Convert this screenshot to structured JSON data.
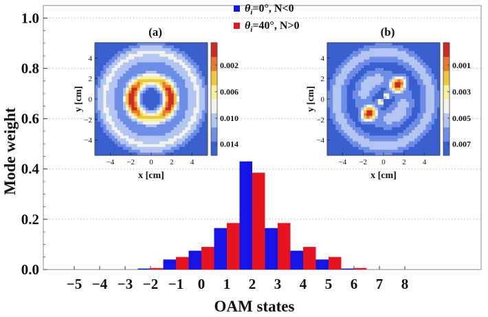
{
  "chart_data": {
    "type": "bar",
    "xlabel": "OAM states",
    "ylabel": "Mode weight",
    "ylim": [
      0,
      1.05
    ],
    "y_ticks": [
      "0.0",
      "0.2",
      "0.4",
      "0.6",
      "0.8",
      "1.0"
    ],
    "categories": [
      "−5",
      "−4",
      "−3",
      "−2",
      "−1",
      "0",
      "1",
      "2",
      "3",
      "4",
      "5",
      "6",
      "7",
      "8"
    ],
    "grid": "horizontal dotted",
    "legend_position": "top-center",
    "series": [
      {
        "name": "θi=0°, N<0",
        "color": "#1414e6",
        "values": [
          0,
          0,
          0,
          0.004,
          0.04,
          0.075,
          0.165,
          0.43,
          0.165,
          0.075,
          0.04,
          0.004,
          0,
          0
        ]
      },
      {
        "name": "θi=40°, N>0",
        "color": "#e6141e",
        "values": [
          0,
          0,
          0,
          0.006,
          0.05,
          0.09,
          0.185,
          0.385,
          0.185,
          0.09,
          0.05,
          0.006,
          0,
          0
        ]
      }
    ],
    "legend_entries": [
      {
        "symbol": "θ",
        "subscript": "i",
        "text": "=0°, N<0",
        "color": "#1414e6"
      },
      {
        "symbol": "θ",
        "subscript": "i",
        "text": "=40°, N>0",
        "color": "#e6141e"
      }
    ],
    "insets": [
      {
        "label": "(a)",
        "xlabel": "x [cm]",
        "ylabel": "y [cm]",
        "x_ticks": [
          "−4",
          "−2",
          "0",
          "2",
          "4"
        ],
        "y_ticks": [
          "−4",
          "−2",
          "0",
          "2",
          "4"
        ],
        "colorbar_ticks": [
          "0.002",
          "0.006",
          "0.010",
          "0.014"
        ],
        "pattern": "ring"
      },
      {
        "label": "(b)",
        "xlabel": "x [cm]",
        "ylabel": "y [cm]",
        "x_ticks": [
          "−4",
          "−2",
          "0",
          "2",
          "4"
        ],
        "y_ticks": [
          "−4",
          "−2",
          "0",
          "2",
          "4"
        ],
        "colorbar_ticks": [
          "0.001",
          "0.003",
          "0.005",
          "0.007"
        ],
        "pattern": "lobes"
      }
    ],
    "colormap": [
      "#3a5fcf",
      "#6d8de6",
      "#b3c6f2",
      "#f3f3ee",
      "#f7f19a",
      "#f0c53c",
      "#e8782c",
      "#d02822"
    ]
  }
}
